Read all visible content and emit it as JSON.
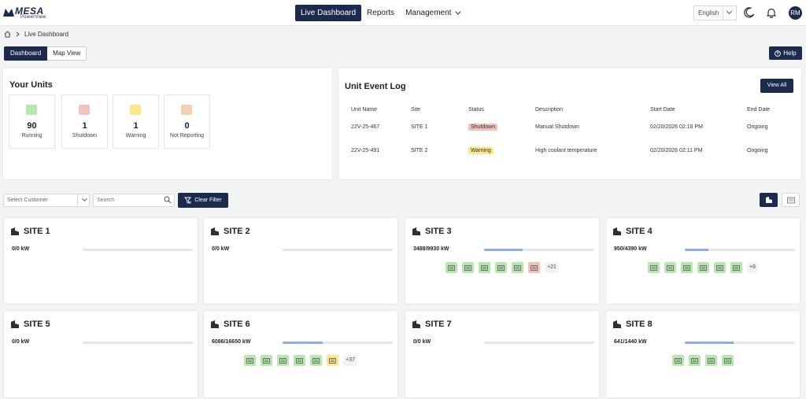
{
  "header": {
    "brand": "MESA",
    "brand_sub": "PowerView",
    "nav": [
      {
        "label": "Live Dashboard",
        "active": true
      },
      {
        "label": "Reports",
        "active": false
      },
      {
        "label": "Management",
        "active": false
      }
    ],
    "language": "English",
    "user_initials": "RM",
    "icons": [
      "moon-icon",
      "bell-icon"
    ]
  },
  "breadcrumb": {
    "current": "Live Dashboard"
  },
  "tabs": [
    {
      "label": "Dashboard",
      "active": true
    },
    {
      "label": "Map View",
      "active": false
    }
  ],
  "help_label": "Help",
  "your_units": {
    "title": "Your Units",
    "stats": [
      {
        "value": "90",
        "label": "Running",
        "color": "#b7e6b1"
      },
      {
        "value": "1",
        "label": "Shutdown",
        "color": "#f2c2bd"
      },
      {
        "value": "1",
        "label": "Warning",
        "color": "#fbe88a"
      },
      {
        "value": "0",
        "label": "Not Reporting",
        "color": "#f3d2b3"
      }
    ]
  },
  "event_log": {
    "title": "Unit Event Log",
    "view_all": "View All",
    "columns": [
      "Unit Name",
      "Site",
      "Status",
      "Description",
      "Start Date",
      "End Date"
    ],
    "rows": [
      {
        "unit": "22V-25-467",
        "site": "SITE 1",
        "status": "Shutdown",
        "status_color": "#f2c2bd",
        "description": "Manual Shutdown",
        "start": "02/20/2026 02:16 PM",
        "end": "Ongoing"
      },
      {
        "unit": "22V-25-491",
        "site": "SITE 2",
        "status": "Warning",
        "status_color": "#fbe88a",
        "description": "High coolant temperature",
        "start": "02/20/2026 02:11 PM",
        "end": "Ongoing"
      }
    ]
  },
  "filters": {
    "customer_placeholder": "Select Customer",
    "search_placeholder": "Search",
    "clear_label": "Clear Filter"
  },
  "sites": [
    {
      "name": "SITE 1",
      "kw": "0/0 kW",
      "load": 0,
      "chips": [],
      "more": ""
    },
    {
      "name": "SITE 2",
      "kw": "0/0 kW",
      "load": 0,
      "chips": [],
      "more": ""
    },
    {
      "name": "SITE 3",
      "kw": "3488/9930 kW",
      "load": 0.351,
      "chips": [
        "running",
        "running",
        "running",
        "running",
        "running",
        "shutdown"
      ],
      "more": "+21"
    },
    {
      "name": "SITE 4",
      "kw": "950/4390 kW",
      "load": 0.216,
      "chips": [
        "running",
        "running",
        "running",
        "running",
        "running",
        "running"
      ],
      "more": "+6"
    },
    {
      "name": "SITE 5",
      "kw": "0/0 kW",
      "load": 0,
      "chips": [],
      "more": ""
    },
    {
      "name": "SITE 6",
      "kw": "6086/16650 kW",
      "load": 0.366,
      "chips": [
        "running",
        "running",
        "running",
        "running",
        "running",
        "warning"
      ],
      "more": "+37"
    },
    {
      "name": "SITE 7",
      "kw": "0/0 kW",
      "load": 0,
      "chips": [],
      "more": ""
    },
    {
      "name": "SITE 8",
      "kw": "641/1440 kW",
      "load": 0.445,
      "chips": [
        "running",
        "running",
        "running",
        "running"
      ],
      "more": ""
    }
  ]
}
